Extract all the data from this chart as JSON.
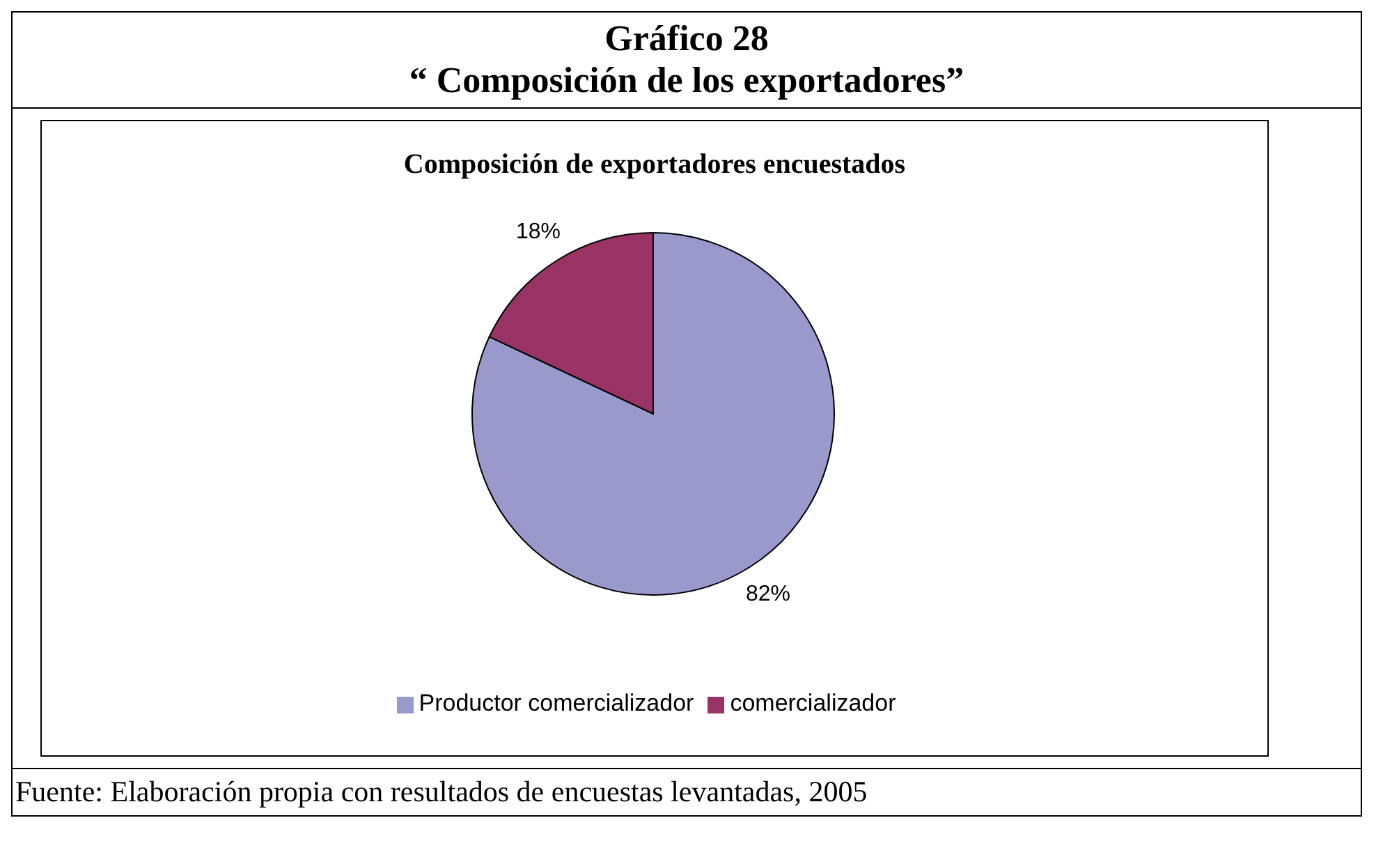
{
  "chart_data": {
    "type": "pie",
    "title": "Gráfico 28",
    "subtitle": "“ Composición de los exportadores”",
    "annotations": [
      "Composición de exportadores encuestados",
      "Fuente: Elaboración propia con resultados de encuestas levantadas, 2005"
    ],
    "categories": [
      "Productor comercializador",
      "comercializador"
    ],
    "values": [
      82,
      18
    ],
    "colors": [
      "#9999cc",
      "#993366"
    ],
    "value_labels": [
      "82%",
      "18%"
    ],
    "legend": "bottom"
  }
}
